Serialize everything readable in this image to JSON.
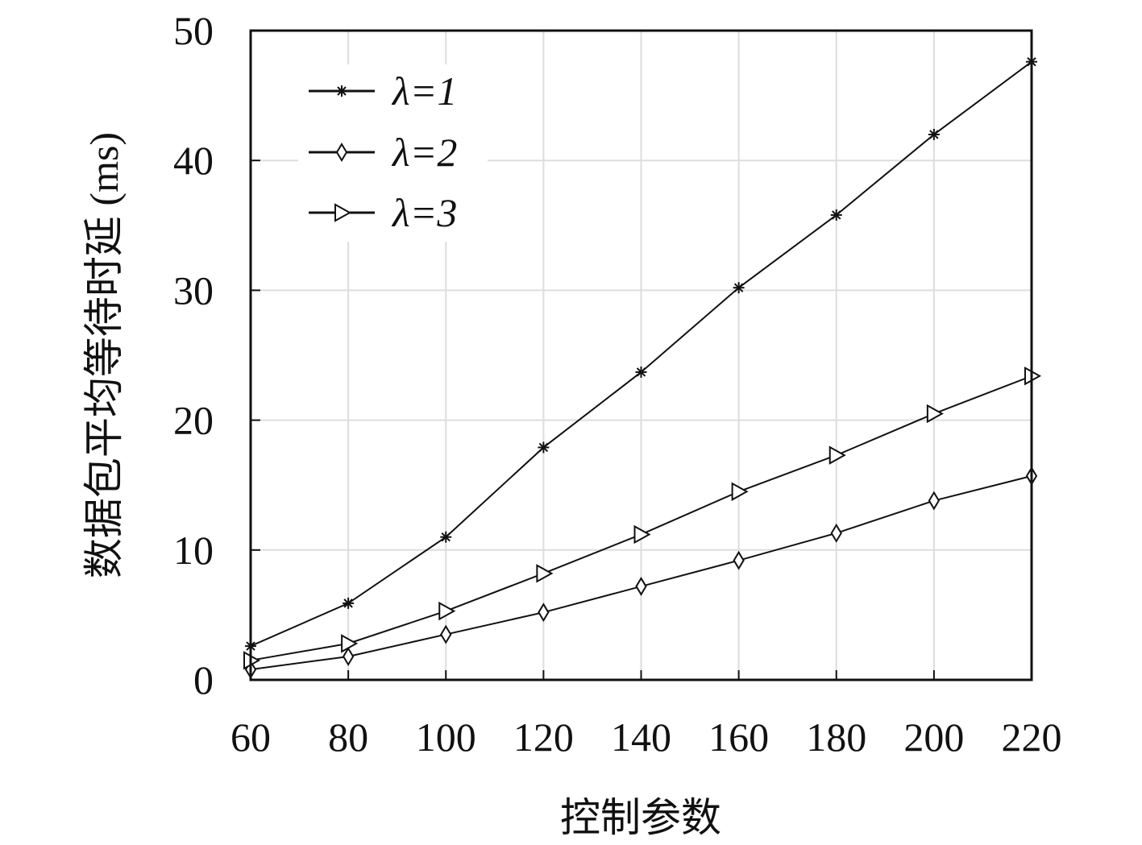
{
  "chart_data": {
    "type": "line",
    "title": "",
    "xlabel": "控制参数",
    "ylabel": "数据包平均等待时延 (ms)",
    "x": [
      60,
      80,
      100,
      120,
      140,
      160,
      180,
      200,
      220
    ],
    "xlim": [
      60,
      220
    ],
    "ylim": [
      0,
      50
    ],
    "xticks": [
      "60",
      "80",
      "100",
      "120",
      "140",
      "160",
      "180",
      "200",
      "220"
    ],
    "yticks": [
      "0",
      "10",
      "20",
      "30",
      "40",
      "50"
    ],
    "grid": true,
    "legend_position": "top-left",
    "series": [
      {
        "name": "λ=1",
        "marker": "asterisk",
        "values": [
          2.6,
          5.9,
          11.0,
          17.9,
          23.7,
          30.2,
          35.8,
          42.0,
          47.6
        ]
      },
      {
        "name": "λ=2",
        "marker": "diamond",
        "values": [
          0.8,
          1.8,
          3.5,
          5.2,
          7.2,
          9.2,
          11.3,
          13.8,
          15.7
        ]
      },
      {
        "name": "λ=3",
        "marker": "triangle-right",
        "values": [
          1.5,
          2.8,
          5.3,
          8.2,
          11.2,
          14.5,
          17.3,
          20.5,
          23.4
        ]
      }
    ],
    "colors": {
      "line": "#111111",
      "grid": "#dddddd",
      "axis": "#111111"
    }
  }
}
